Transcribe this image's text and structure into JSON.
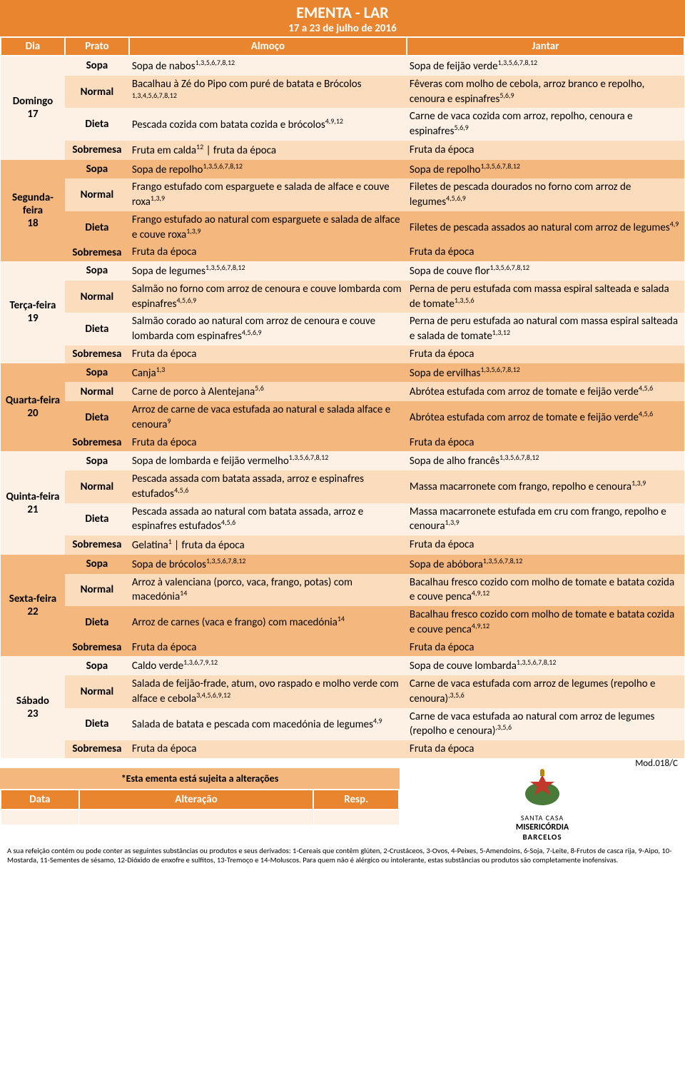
{
  "colors": {
    "orange": "#e9842f",
    "light": "#fdf1e5",
    "med": "#fbdcbd",
    "dark": "#f4b77e"
  },
  "header": {
    "title": "EMENTA - LAR",
    "dates": "17 a 23 de julho de 2016"
  },
  "columns": {
    "day": "Dia",
    "prato": "Prato",
    "lunch": "Almoço",
    "dinner": "Jantar"
  },
  "pratos": {
    "sopa": "Sopa",
    "normal": "Normal",
    "dieta": "Dieta",
    "sobremesa": "Sobremesa"
  },
  "days": [
    {
      "label": "Domingo 17",
      "shade": "light",
      "rows": [
        {
          "p": "sopa",
          "lunch": "Sopa de nabos",
          "lsup": "1,3,5,6,7,8,12",
          "dinner": "Sopa de feijão verde",
          "dsup": "1,3,5,6,7,8,12"
        },
        {
          "p": "normal",
          "lunch": "Bacalhau à Zé do Pipo com puré de batata e Brócolos ",
          "lsup": "1,3,4,5,6,7,8,12",
          "dinner": "Fêveras com molho de cebola, arroz branco e repolho, cenoura e espinafres",
          "dsup": "5,6,9"
        },
        {
          "p": "dieta",
          "lunch": "Pescada cozida com batata cozida e brócolos",
          "lsup": "4,9,12",
          "dinner": "Carne de vaca cozida com arroz, repolho, cenoura e espinafres",
          "dsup": "5,6,9"
        },
        {
          "p": "sobremesa",
          "lunch_html": "Fruta em calda<sup>12</sup> | fruta da época",
          "dinner": "Fruta da época"
        }
      ]
    },
    {
      "label": "Segunda-feira 18",
      "shade": "dark",
      "rows": [
        {
          "p": "sopa",
          "lunch": "Sopa de repolho",
          "lsup": "1,3,5,6,7,8,12",
          "dinner": "Sopa de repolho",
          "dsup": "1,3,5,6,7,8,12"
        },
        {
          "p": "normal",
          "lunch": "Frango estufado com esparguete e salada de alface e couve roxa",
          "lsup": "1,3,9",
          "dinner": "Filetes de pescada dourados no forno com arroz de legumes",
          "dsup": "4,5,6,9"
        },
        {
          "p": "dieta",
          "lunch": "Frango estufado ao natural com esparguete e salada de alface e couve roxa",
          "lsup": "1,3,9",
          "dinner": "Filetes de pescada assados ao natural com arroz de legumes",
          "dsup": "4,9"
        },
        {
          "p": "sobremesa",
          "lunch": "Fruta da época",
          "dinner": "Fruta da época"
        }
      ]
    },
    {
      "label": "Terça-feira 19",
      "shade": "light",
      "rows": [
        {
          "p": "sopa",
          "lunch": "Sopa de legumes",
          "lsup": "1,3,5,6,7,8,12",
          "dinner": "Sopa de couve flor",
          "dsup": "1,3,5,6,7,8,12"
        },
        {
          "p": "normal",
          "lunch": "Salmão no forno com arroz de cenoura e couve lombarda com espinafres",
          "lsup": "4,5,6,9",
          "dinner": "Perna de peru estufada com massa espiral salteada e salada de tomate",
          "dsup": "1,3,5,6"
        },
        {
          "p": "dieta",
          "lunch": "Salmão corado ao natural com arroz de cenoura e couve lombarda com espinafres",
          "lsup": "4,5,6,9",
          "dinner": "Perna de peru estufada ao natural com massa espiral salteada e salada de tomate",
          "dsup": "1,3,12"
        },
        {
          "p": "sobremesa",
          "lunch": "Fruta da época",
          "dinner": "Fruta da época"
        }
      ]
    },
    {
      "label": "Quarta-feira 20",
      "shade": "dark",
      "rows": [
        {
          "p": "sopa",
          "lunch": "Canja",
          "lsup": "1,3",
          "dinner": "Sopa de ervilhas",
          "dsup": "1,3,5,6,7,8,12"
        },
        {
          "p": "normal",
          "lunch": "Carne de porco à Alentejana",
          "lsup": "5,6",
          "dinner": "Abrótea estufada com arroz de tomate e feijão verde",
          "dsup": "4,5,6"
        },
        {
          "p": "dieta",
          "lunch": "Arroz de carne de vaca estufada ao natural e salada alface e cenoura",
          "lsup": "9",
          "dinner": "Abrótea estufada com arroz de tomate e feijão verde",
          "dsup": "4,5,6"
        },
        {
          "p": "sobremesa",
          "lunch": "Fruta da época",
          "dinner": "Fruta da época"
        }
      ]
    },
    {
      "label": "Quinta-feira 21",
      "shade": "light",
      "rows": [
        {
          "p": "sopa",
          "lunch": "Sopa de lombarda e feijão vermelho",
          "lsup": "1,3,5,6,7,8,12",
          "dinner": "Sopa de alho francês",
          "dsup": "1,3,5,6,7,8,12"
        },
        {
          "p": "normal",
          "lunch": "Pescada assada com batata assada, arroz e espinafres estufados",
          "lsup": "4,5,6",
          "dinner": "Massa macarronete com frango, repolho e cenoura",
          "dsup": "1,3,9"
        },
        {
          "p": "dieta",
          "lunch": "Pescada assada ao natural com batata assada, arroz e espinafres estufados",
          "lsup": "4,5,6",
          "dinner": "Massa macarronete estufada em cru com frango, repolho e cenoura",
          "dsup": "1,3,9"
        },
        {
          "p": "sobremesa",
          "lunch_html": "Gelatina<sup>1</sup> | fruta da época",
          "dinner": "Fruta da época"
        }
      ]
    },
    {
      "label": "Sexta-feira 22",
      "shade": "dark",
      "rows": [
        {
          "p": "sopa",
          "lunch": "Sopa de brócolos",
          "lsup": "1,3,5,6,7,8,12",
          "dinner": "Sopa de abóbora",
          "dsup": "1,3,5,6,7,8,12"
        },
        {
          "p": "normal",
          "lunch": "Arroz à valenciana (porco, vaca, frango, potas) com macedónia",
          "lsup": "14",
          "dinner": "Bacalhau fresco cozido com molho de tomate e batata cozida e couve penca",
          "dsup": "4,9,12"
        },
        {
          "p": "dieta",
          "lunch": "Arroz de carnes (vaca e frango) com macedónia",
          "lsup": "14",
          "dinner": "Bacalhau fresco cozido com molho de tomate e batata cozida e couve penca",
          "dsup": "4,9,12"
        },
        {
          "p": "sobremesa",
          "lunch": "Fruta da época",
          "dinner": "Fruta da época"
        }
      ]
    },
    {
      "label": "Sábado 23",
      "shade": "light",
      "rows": [
        {
          "p": "sopa",
          "lunch": "Caldo verde",
          "lsup": "1,3,6,7,9,12",
          "dinner": "Sopa de couve lombarda",
          "dsup": "1,3,5,6,7,8,12"
        },
        {
          "p": "normal",
          "lunch": "Salada de feijão-frade, atum, ovo raspado e molho verde com alface e cebola",
          "lsup": "3,4,5,6,9,12",
          "dinner": "Carne de vaca estufada com arroz de legumes (repolho e cenoura)",
          "dsup": ",3,5,6"
        },
        {
          "p": "dieta",
          "lunch": "Salada de batata e pescada com macedónia de legumes",
          "lsup": "4,9",
          "dinner": "Carne de vaca estufada ao natural com arroz de legumes (repolho e cenoura)",
          "dsup": ",3,5,6"
        },
        {
          "p": "sobremesa",
          "lunch": "Fruta da época",
          "dinner": "Fruta da época"
        }
      ]
    }
  ],
  "notice": "*Esta ementa está sujeita a alterações",
  "alter": {
    "data": "Data",
    "alteracao": "Alteração",
    "resp": "Resp."
  },
  "mod": "Mod.018/C",
  "logo": {
    "l1": "SANTA CASA",
    "l2": "MISERICÓRDIA",
    "l3": "BARCELOS"
  },
  "allergens": "A sua refeição contém ou pode conter as seguintes substâncias ou produtos e seus derivados: 1-Cereais que contêm glúten, 2-Crustáceos, 3-Ovos, 4-Peixes, 5-Amendoins, 6-Soja, 7-Leite, 8-Frutos de casca rija, 9-Aipo, 10-Mostarda, 11-Sementes de sésamo, 12-Dióxido de enxofre e sulfitos, 13-Tremoço e 14-Moluscos. Para quem não é alérgico ou intolerante, estas substâncias ou produtos são completamente inofensivas."
}
